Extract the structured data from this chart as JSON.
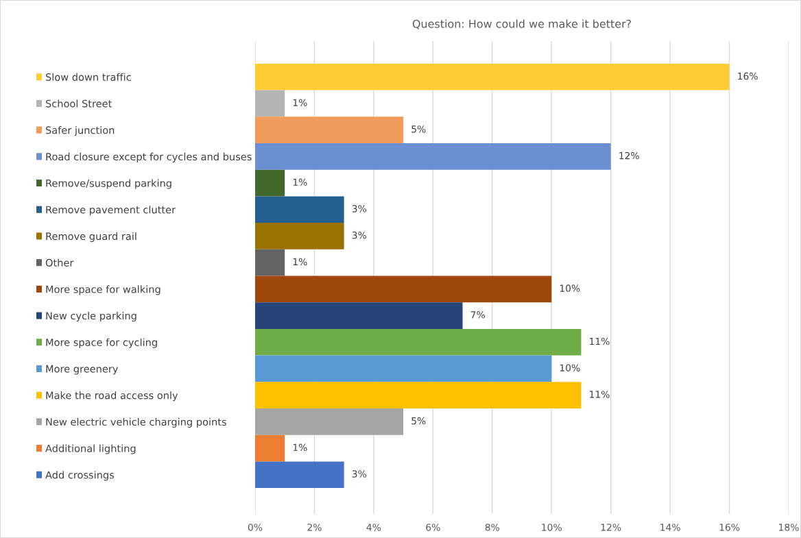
{
  "chart_data": {
    "type": "bar",
    "orientation": "horizontal",
    "title": "Question: How could we make it better?",
    "categories": [
      "Slow down traffic",
      "School Street",
      "Safer junction",
      "Road closure except for cycles and buses",
      "Remove/suspend parking",
      "Remove pavement clutter",
      "Remove guard rail",
      "Other",
      "More space for walking",
      "New cycle parking",
      "More space for cycling",
      "More greenery",
      "Make the road access only",
      "New electric vehicle charging points",
      "Additional lighting",
      "Add crossings"
    ],
    "values": [
      16,
      1,
      5,
      12,
      1,
      3,
      3,
      1,
      10,
      7,
      11,
      10,
      11,
      5,
      1,
      3
    ],
    "value_labels": [
      "16%",
      "1%",
      "5%",
      "12%",
      "1%",
      "3%",
      "3%",
      "1%",
      "10%",
      "7%",
      "11%",
      "10%",
      "11%",
      "5%",
      "1%",
      "3%"
    ],
    "colors": [
      "#ffcd33",
      "#b4b4b4",
      "#f19b5c",
      "#6a8fd2",
      "#43682b",
      "#255e91",
      "#997300",
      "#636363",
      "#9e480e",
      "#264478",
      "#70ad47",
      "#5b9bd5",
      "#ffc000",
      "#a5a5a5",
      "#ed7d31",
      "#4472c4"
    ],
    "xlim": [
      0,
      18
    ],
    "xticks": [
      {
        "value": 0,
        "label": "0%"
      },
      {
        "value": 2,
        "label": "2%"
      },
      {
        "value": 4,
        "label": "4%"
      },
      {
        "value": 6,
        "label": "6%"
      },
      {
        "value": 8,
        "label": "8%"
      },
      {
        "value": 10,
        "label": "10%"
      },
      {
        "value": 12,
        "label": "12%"
      },
      {
        "value": 14,
        "label": "14%"
      },
      {
        "value": 16,
        "label": "16%"
      },
      {
        "value": 18,
        "label": "18%"
      }
    ],
    "grid": "x"
  }
}
